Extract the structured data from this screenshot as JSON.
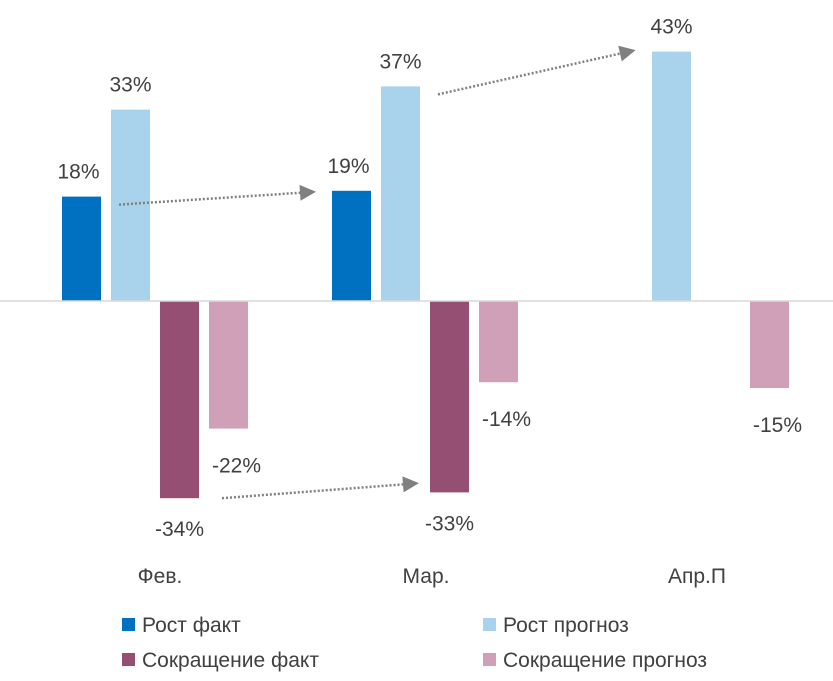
{
  "chart_data": {
    "type": "bar",
    "title": "",
    "xlabel": "",
    "ylabel": "",
    "categories": [
      "Фев.",
      "Мар.",
      "Апр.П"
    ],
    "series": [
      {
        "name": "Рост факт",
        "color": "#0070C0",
        "values": [
          18,
          19,
          null
        ]
      },
      {
        "name": "Рост прогноз",
        "color": "#A9D3EC",
        "values": [
          33,
          37,
          43
        ]
      },
      {
        "name": "Сокращение факт",
        "color": "#954F72",
        "values": [
          -34,
          -33,
          null
        ]
      },
      {
        "name": "Сокращение прогноз",
        "color": "#D0A0B8",
        "values": [
          -22,
          -14,
          -15
        ]
      }
    ],
    "data_labels": {
      "0": [
        "18%",
        "19%",
        ""
      ],
      "1": [
        "33%",
        "37%",
        "43%"
      ],
      "2": [
        "-34%",
        "-33%",
        ""
      ],
      "3": [
        "-22%",
        "-14%",
        "-15%"
      ]
    },
    "arrows": [
      {
        "from": {
          "category": 0,
          "series": 0
        },
        "to": {
          "category": 1,
          "series": 0
        }
      },
      {
        "from": {
          "category": 1,
          "series": 1
        },
        "to": {
          "category": 2,
          "series": 1
        }
      },
      {
        "from": {
          "category": 0,
          "series": 2
        },
        "to": {
          "category": 1,
          "series": 2
        }
      }
    ],
    "grid": false,
    "legend_position": "bottom",
    "arrow_color": "#808080"
  }
}
